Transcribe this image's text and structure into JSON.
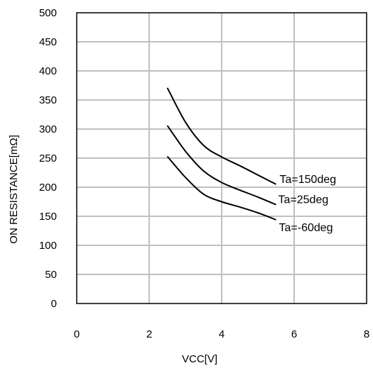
{
  "chart_data": {
    "type": "line",
    "title": "",
    "xlabel": "VCC[V]",
    "ylabel": "ON RESISTANCE[mΩ]",
    "xlim": [
      0,
      8
    ],
    "ylim": [
      0,
      500
    ],
    "x_ticks": [
      0,
      2,
      4,
      6,
      8
    ],
    "y_ticks": [
      0,
      50,
      100,
      150,
      200,
      250,
      300,
      350,
      400,
      450,
      500
    ],
    "grid": true,
    "series": [
      {
        "name": "Ta=150deg",
        "color": "#000000",
        "x": [
          2.5,
          3.0,
          3.5,
          4.0,
          4.5,
          5.0,
          5.5
        ],
        "y": [
          371,
          312,
          272,
          252,
          237,
          221,
          205
        ]
      },
      {
        "name": "Ta=25deg",
        "color": "#000000",
        "x": [
          2.5,
          3.0,
          3.5,
          4.0,
          4.5,
          5.0,
          5.5
        ],
        "y": [
          306,
          262,
          228,
          208,
          195,
          183,
          170
        ]
      },
      {
        "name": "Ta=-60deg",
        "color": "#000000",
        "x": [
          2.5,
          3.0,
          3.5,
          4.0,
          4.5,
          5.0,
          5.5
        ],
        "y": [
          253,
          217,
          188,
          175,
          166,
          156,
          144
        ]
      }
    ]
  }
}
